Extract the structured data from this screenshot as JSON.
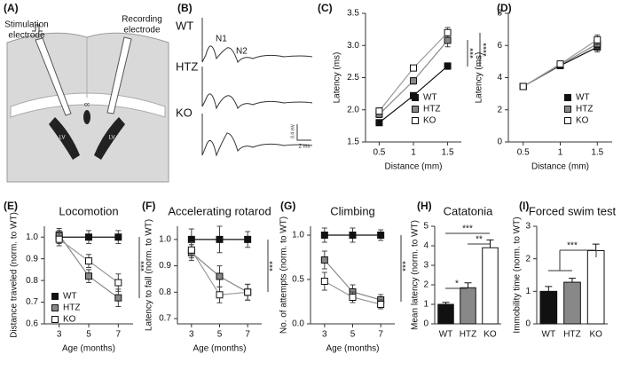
{
  "panels": {
    "A": {
      "label": "(A)",
      "stimulation_electrode": [
        "Stimulation",
        "electrode"
      ],
      "recording_electrode": [
        "Recording",
        "electrode"
      ],
      "cc": "cc",
      "lv": [
        "LV",
        "LV"
      ]
    },
    "B": {
      "label": "(B)",
      "traces": [
        "WT",
        "HTZ",
        "KO"
      ],
      "peaks": [
        "N1",
        "N2"
      ],
      "scale": [
        "0.4 mV",
        "2 ms"
      ]
    }
  },
  "chart_data": [
    {
      "type": "line",
      "panel_label": "(C)",
      "x_label": "Distance (mm)",
      "y_label": "Latency (ms)",
      "x": [
        0.5,
        1,
        1.5
      ],
      "xlim": [
        0.3,
        1.7
      ],
      "xticks": [
        0.5,
        1,
        1.5
      ],
      "ylim": [
        1.5,
        3.5
      ],
      "yticks": [
        1.5,
        {
          "value": 2,
          "label": "2.0"
        },
        2.5,
        {
          "value": 3,
          "label": "3.0"
        },
        3.5
      ],
      "legend": "lower right",
      "series": [
        {
          "name": "WT",
          "color": "#111111",
          "values": [
            1.8,
            2.22,
            2.68
          ],
          "errors": [
            0.03,
            0.04,
            0.05
          ]
        },
        {
          "name": "HTZ",
          "color": "#888888",
          "values": [
            1.93,
            2.45,
            3.08
          ],
          "errors": [
            0.05,
            0.05,
            0.1
          ]
        },
        {
          "name": "KO",
          "color": "#ffffff",
          "values": [
            1.98,
            2.65,
            3.2
          ],
          "errors": [
            0.05,
            0.04,
            0.08
          ]
        }
      ],
      "annotations": [
        "***",
        "****"
      ]
    },
    {
      "type": "line",
      "panel_label": "(D)",
      "x_label": "Distance (mm)",
      "y_label": "Latency (ms)",
      "x": [
        0.5,
        1,
        1.5
      ],
      "xlim": [
        0.3,
        1.7
      ],
      "xticks": [
        0.5,
        1,
        1.5
      ],
      "ylim": [
        0,
        8
      ],
      "yticks": [
        0,
        2,
        4,
        6,
        8
      ],
      "legend": "lower right",
      "series": [
        {
          "name": "WT",
          "color": "#111111",
          "values": [
            3.45,
            4.75,
            5.9
          ],
          "errors": [
            0.1,
            0.15,
            0.3
          ]
        },
        {
          "name": "HTZ",
          "color": "#888888",
          "values": [
            3.45,
            4.8,
            6.1
          ],
          "errors": [
            0.1,
            0.15,
            0.3
          ]
        },
        {
          "name": "KO",
          "color": "#ffffff",
          "values": [
            3.45,
            4.85,
            6.35
          ],
          "errors": [
            0.1,
            0.15,
            0.3
          ]
        }
      ],
      "annotations": []
    },
    {
      "type": "line",
      "panel_label": "(E)",
      "title": "Locomotion",
      "x_label": "Age (months)",
      "y_label": "Distance traveled (norm. to WT)",
      "x": [
        3,
        5,
        7
      ],
      "xlim": [
        2,
        8
      ],
      "xticks": [
        3,
        5,
        7
      ],
      "ylim": [
        0.6,
        1.05
      ],
      "yticks": [
        0.6,
        0.7,
        0.8,
        0.9,
        {
          "value": 1,
          "label": "1.0"
        }
      ],
      "legend": "lower left",
      "series": [
        {
          "name": "WT",
          "color": "#111111",
          "values": [
            1.0,
            1.0,
            1.0
          ],
          "errors": [
            0.03,
            0.03,
            0.03
          ]
        },
        {
          "name": "HTZ",
          "color": "#888888",
          "values": [
            1.01,
            0.82,
            0.72
          ],
          "errors": [
            0.03,
            0.03,
            0.04
          ]
        },
        {
          "name": "KO",
          "color": "#ffffff",
          "values": [
            0.99,
            0.89,
            0.79
          ],
          "errors": [
            0.03,
            0.03,
            0.04
          ]
        }
      ],
      "annotations": [
        "***"
      ]
    },
    {
      "type": "line",
      "panel_label": "(F)",
      "title": "Accelerating rotarod",
      "x_label": "Age (months)",
      "y_label": "Latency to fall (norm. to WT)",
      "x": [
        3,
        5,
        7
      ],
      "xlim": [
        2,
        8
      ],
      "xticks": [
        3,
        5,
        7
      ],
      "ylim": [
        0.68,
        1.05
      ],
      "yticks": [
        0.7,
        0.8,
        0.9,
        {
          "value": 1,
          "label": "1.0"
        }
      ],
      "series": [
        {
          "name": "WT",
          "color": "#111111",
          "values": [
            1.0,
            1.0,
            1.0
          ],
          "errors": [
            0.04,
            0.05,
            0.03
          ]
        },
        {
          "name": "HTZ",
          "color": "#888888",
          "values": [
            0.95,
            0.86,
            0.8
          ],
          "errors": [
            0.03,
            0.04,
            0.03
          ]
        },
        {
          "name": "KO",
          "color": "#ffffff",
          "values": [
            0.96,
            0.79,
            0.8
          ],
          "errors": [
            0.03,
            0.03,
            0.03
          ]
        }
      ],
      "annotations": [
        "***"
      ]
    },
    {
      "type": "line",
      "panel_label": "(G)",
      "title": "Climbing",
      "x_label": "Age (months)",
      "y_label": "No. of attempts (norm. to WT)",
      "x": [
        3,
        5,
        7
      ],
      "xlim": [
        2,
        8
      ],
      "xticks": [
        3,
        5,
        7
      ],
      "ylim": [
        0,
        1.1
      ],
      "yticks": [
        {
          "value": 0,
          "label": "0.0"
        },
        0.5,
        {
          "value": 1,
          "label": "1.0"
        }
      ],
      "series": [
        {
          "name": "WT",
          "color": "#111111",
          "values": [
            1.0,
            1.0,
            1.0
          ],
          "errors": [
            0.08,
            0.08,
            0.06
          ]
        },
        {
          "name": "HTZ",
          "color": "#888888",
          "values": [
            0.72,
            0.36,
            0.27
          ],
          "errors": [
            0.1,
            0.08,
            0.06
          ]
        },
        {
          "name": "KO",
          "color": "#ffffff",
          "values": [
            0.48,
            0.3,
            0.22
          ],
          "errors": [
            0.1,
            0.06,
            0.05
          ]
        }
      ],
      "annotations": [
        "***"
      ]
    },
    {
      "type": "bar",
      "panel_label": "(H)",
      "title": "Catatonia",
      "y_label": "Mean latency (norm. to WT)",
      "categories": [
        "WT",
        "HTZ",
        "KO"
      ],
      "values": [
        1.0,
        1.85,
        3.9
      ],
      "errors": [
        0.1,
        0.25,
        0.4
      ],
      "colors": [
        "#111111",
        "#888888",
        "#ffffff"
      ],
      "ylim": [
        0,
        5
      ],
      "yticks": [
        0,
        1,
        2,
        3,
        4,
        5
      ],
      "annotations": [
        "*",
        "**",
        "***"
      ]
    },
    {
      "type": "bar",
      "panel_label": "(I)",
      "title": "Forced swim test",
      "y_label": "Immobility time (norm. to WT)",
      "categories": [
        "WT",
        "HTZ",
        "KO"
      ],
      "values": [
        1.0,
        1.28,
        2.25
      ],
      "errors": [
        0.15,
        0.12,
        0.2
      ],
      "colors": [
        "#111111",
        "#888888",
        "#ffffff"
      ],
      "ylim": [
        0,
        3
      ],
      "yticks": [
        0,
        1,
        2,
        3
      ],
      "annotations": [
        "***"
      ]
    }
  ]
}
